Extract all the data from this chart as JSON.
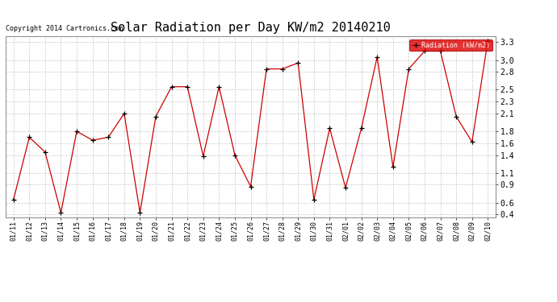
{
  "title": "Solar Radiation per Day KW/m2 20140210",
  "copyright": "Copyright 2014 Cartronics.com",
  "legend_label": "Radiation (kW/m2)",
  "x_labels": [
    "01/11",
    "01/12",
    "01/13",
    "01/14",
    "01/15",
    "01/16",
    "01/17",
    "01/18",
    "01/19",
    "01/20",
    "01/21",
    "01/22",
    "01/23",
    "01/24",
    "01/25",
    "01/26",
    "01/27",
    "01/28",
    "01/29",
    "01/30",
    "01/31",
    "02/01",
    "02/02",
    "02/03",
    "02/04",
    "02/05",
    "02/06",
    "02/07",
    "02/08",
    "02/09",
    "02/10"
  ],
  "y_values": [
    0.65,
    1.7,
    1.45,
    0.43,
    1.8,
    1.65,
    1.7,
    2.1,
    0.43,
    2.05,
    2.55,
    2.55,
    1.38,
    2.55,
    1.4,
    0.87,
    2.85,
    2.85,
    2.95,
    0.65,
    1.85,
    0.85,
    1.85,
    3.05,
    1.2,
    2.85,
    3.15,
    3.15,
    2.05,
    1.62,
    3.32
  ],
  "y_min": 0.35,
  "y_max": 3.4,
  "y_ticks": [
    0.4,
    0.6,
    0.9,
    1.1,
    1.4,
    1.6,
    1.8,
    2.1,
    2.3,
    2.5,
    2.8,
    3.0,
    3.3
  ],
  "line_color": "#cc0000",
  "marker_color": "#000000",
  "bg_color": "#ffffff",
  "grid_color": "#c8c8c8",
  "title_fontsize": 11,
  "tick_fontsize": 6,
  "copyright_fontsize": 6,
  "legend_bg": "#dd0000",
  "legend_text_color": "#ffffff"
}
